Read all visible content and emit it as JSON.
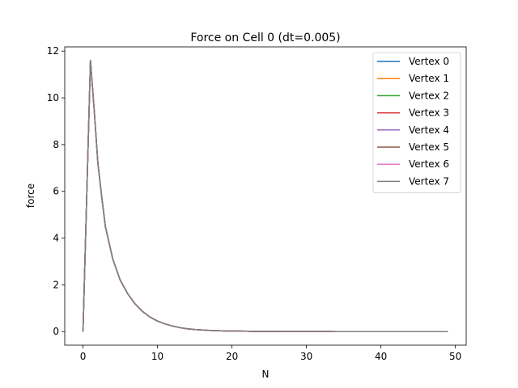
{
  "chart_data": {
    "type": "line",
    "title": "Force on Cell 0 (dt=0.005)",
    "xlabel": "N",
    "ylabel": "force",
    "xlim": [
      -2.45,
      51.45
    ],
    "ylim": [
      -0.58,
      12.18
    ],
    "xticks": [
      0,
      10,
      20,
      30,
      40,
      50
    ],
    "yticks": [
      0,
      2,
      4,
      6,
      8,
      10,
      12
    ],
    "legend_position": "upper right",
    "grid": false,
    "x": [
      0,
      0.5,
      1,
      1.5,
      2,
      2.5,
      3,
      3.5,
      4,
      4.5,
      5,
      6,
      7,
      8,
      9,
      10,
      11,
      12,
      13,
      14,
      15,
      16,
      17,
      18,
      19,
      20,
      21,
      22,
      23,
      24,
      25,
      26,
      27,
      28,
      29,
      30,
      31,
      32,
      33,
      34,
      35,
      36,
      37,
      38,
      39,
      40,
      41,
      42,
      43,
      44,
      45,
      46,
      47,
      48,
      49
    ],
    "series": [
      {
        "name": "Vertex 0",
        "color": "#1f77b4"
      },
      {
        "name": "Vertex 1",
        "color": "#ff7f0e"
      },
      {
        "name": "Vertex 2",
        "color": "#2ca02c"
      },
      {
        "name": "Vertex 3",
        "color": "#d62728"
      },
      {
        "name": "Vertex 4",
        "color": "#9467bd"
      },
      {
        "name": "Vertex 5",
        "color": "#8c564b"
      },
      {
        "name": "Vertex 6",
        "color": "#e377c2"
      },
      {
        "name": "Vertex 7",
        "color": "#7f7f7f"
      }
    ],
    "values": [
      0,
      5.8,
      11.6,
      9.5,
      7.2,
      5.8,
      4.5,
      3.8,
      3.1,
      2.65,
      2.2,
      1.62,
      1.18,
      0.86,
      0.62,
      0.45,
      0.33,
      0.24,
      0.17,
      0.12,
      0.09,
      0.07,
      0.05,
      0.04,
      0.03,
      0.025,
      0.02,
      0.015,
      0.01,
      0.01,
      0.008,
      0.006,
      0.005,
      0.004,
      0.003,
      0.003,
      0.002,
      0.002,
      0.002,
      0.001,
      0.001,
      0.001,
      0.001,
      0.001,
      0.001,
      0.001,
      0,
      0,
      0,
      0,
      0,
      0,
      0,
      0,
      0
    ]
  }
}
